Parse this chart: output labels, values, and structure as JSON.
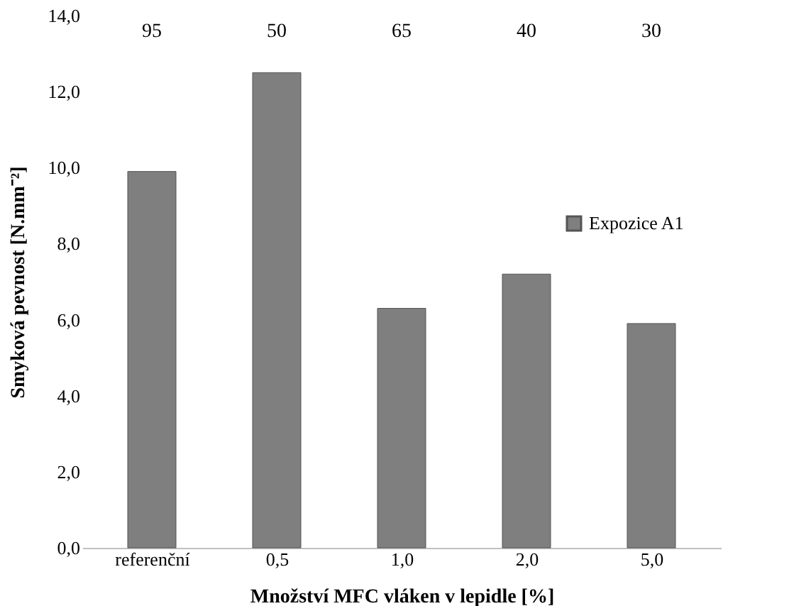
{
  "chart_data": {
    "type": "bar",
    "xlabel": "Množství MFC vláken v lepidle [%]",
    "ylabel": "Smyková pevnost  [N.mm⁻²]",
    "categories": [
      "referenční",
      "0,5",
      "1,0",
      "2,0",
      "5,0"
    ],
    "series": [
      {
        "name": "Expozice A1",
        "color": "#7f7f7f",
        "values": [
          9.9,
          12.5,
          6.3,
          7.2,
          5.9
        ]
      }
    ],
    "ylim": [
      0,
      14
    ],
    "yticks": [
      {
        "value": 0,
        "label": "0,0"
      },
      {
        "value": 2,
        "label": "2,0"
      },
      {
        "value": 4,
        "label": "4,0"
      },
      {
        "value": 6,
        "label": "6,0"
      },
      {
        "value": 8,
        "label": "8,0"
      },
      {
        "value": 10,
        "label": "10,0"
      },
      {
        "value": 12,
        "label": "12,0"
      },
      {
        "value": 14,
        "label": "14,0"
      }
    ],
    "annotations": [
      "95",
      "50",
      "65",
      "40",
      "30"
    ],
    "grid": false,
    "legend": "right"
  }
}
